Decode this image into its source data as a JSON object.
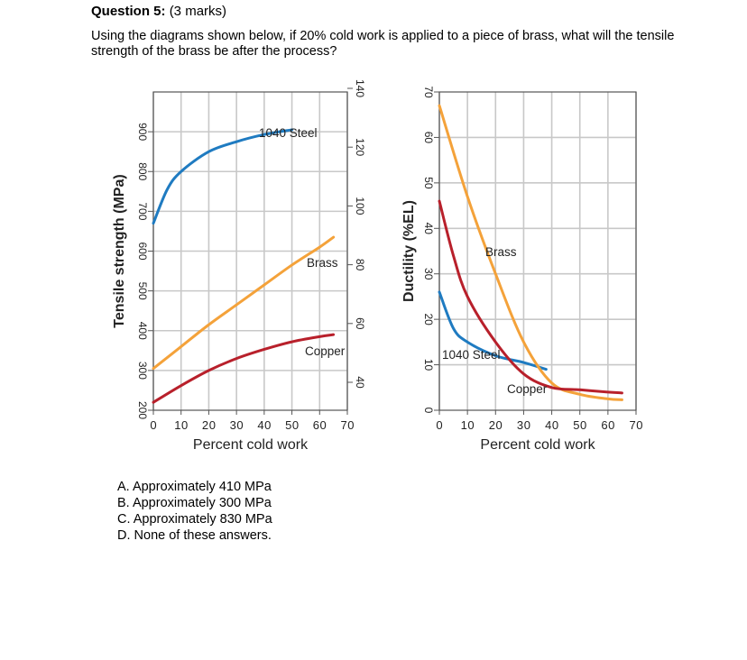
{
  "question": {
    "number_label": "Question 5:",
    "marks": "(3 marks)",
    "text": "Using the diagrams shown below, if 20% cold work is applied to a piece of brass, what will the tensile strength of the brass be after the process?"
  },
  "answers": [
    {
      "letter": "A.",
      "text": "Approximately 410 MPa"
    },
    {
      "letter": "B.",
      "text": "Approximately 300 MPa"
    },
    {
      "letter": "C.",
      "text": "Approximately 830 MPa"
    },
    {
      "letter": "D.",
      "text": "None of these answers."
    }
  ],
  "colors": {
    "steel": "#1f7bc1",
    "brass": "#f4a23a",
    "copper": "#b8202b",
    "grid": "#c8c8c8",
    "frame": "#555555"
  },
  "chart_data": [
    {
      "type": "line",
      "xlabel": "Percent cold work",
      "ylabel": "Tensile strength (MPa)",
      "xlim": [
        0,
        70
      ],
      "ylim": [
        200,
        1000
      ],
      "xticks": [
        "0",
        "10",
        "20",
        "30",
        "40",
        "50",
        "60",
        "70"
      ],
      "yticks": [
        "200",
        "300",
        "400",
        "500",
        "600",
        "700",
        "800",
        "900"
      ],
      "y2ticks": [
        "40",
        "60",
        "80",
        "100",
        "120",
        "140"
      ],
      "grid": true,
      "series": [
        {
          "name": "1040 Steel",
          "color_key": "steel",
          "x": [
            0,
            5,
            10,
            20,
            30,
            40,
            50
          ],
          "y": [
            670,
            755,
            800,
            850,
            875,
            893,
            905
          ]
        },
        {
          "name": "Brass",
          "color_key": "brass",
          "x": [
            0,
            10,
            20,
            30,
            40,
            50,
            60,
            65
          ],
          "y": [
            305,
            360,
            415,
            465,
            515,
            565,
            610,
            635
          ]
        },
        {
          "name": "Copper",
          "color_key": "copper",
          "x": [
            0,
            10,
            20,
            30,
            40,
            50,
            60,
            65
          ],
          "y": [
            220,
            262,
            300,
            330,
            353,
            372,
            385,
            390
          ]
        }
      ]
    },
    {
      "type": "line",
      "xlabel": "Percent cold work",
      "ylabel": "Ductility (%EL)",
      "xlim": [
        0,
        70
      ],
      "ylim": [
        0,
        70
      ],
      "xticks": [
        "0",
        "10",
        "20",
        "30",
        "40",
        "50",
        "60",
        "70"
      ],
      "yticks": [
        "0",
        "10",
        "20",
        "30",
        "40",
        "50",
        "60",
        "70"
      ],
      "grid": true,
      "series": [
        {
          "name": "1040 Steel",
          "color_key": "steel",
          "x": [
            0,
            5,
            10,
            20,
            30,
            38
          ],
          "y": [
            26,
            18,
            15,
            12,
            10.5,
            9
          ]
        },
        {
          "name": "Brass",
          "color_key": "brass",
          "x": [
            0,
            10,
            20,
            30,
            40,
            50,
            60,
            65
          ],
          "y": [
            67,
            47,
            30,
            15,
            6,
            3.5,
            2.5,
            2.3
          ]
        },
        {
          "name": "Copper",
          "color_key": "copper",
          "x": [
            0,
            5,
            10,
            20,
            30,
            40,
            50,
            60,
            65
          ],
          "y": [
            46,
            34,
            25,
            15,
            8,
            5,
            4.5,
            4,
            3.8
          ]
        }
      ]
    }
  ]
}
